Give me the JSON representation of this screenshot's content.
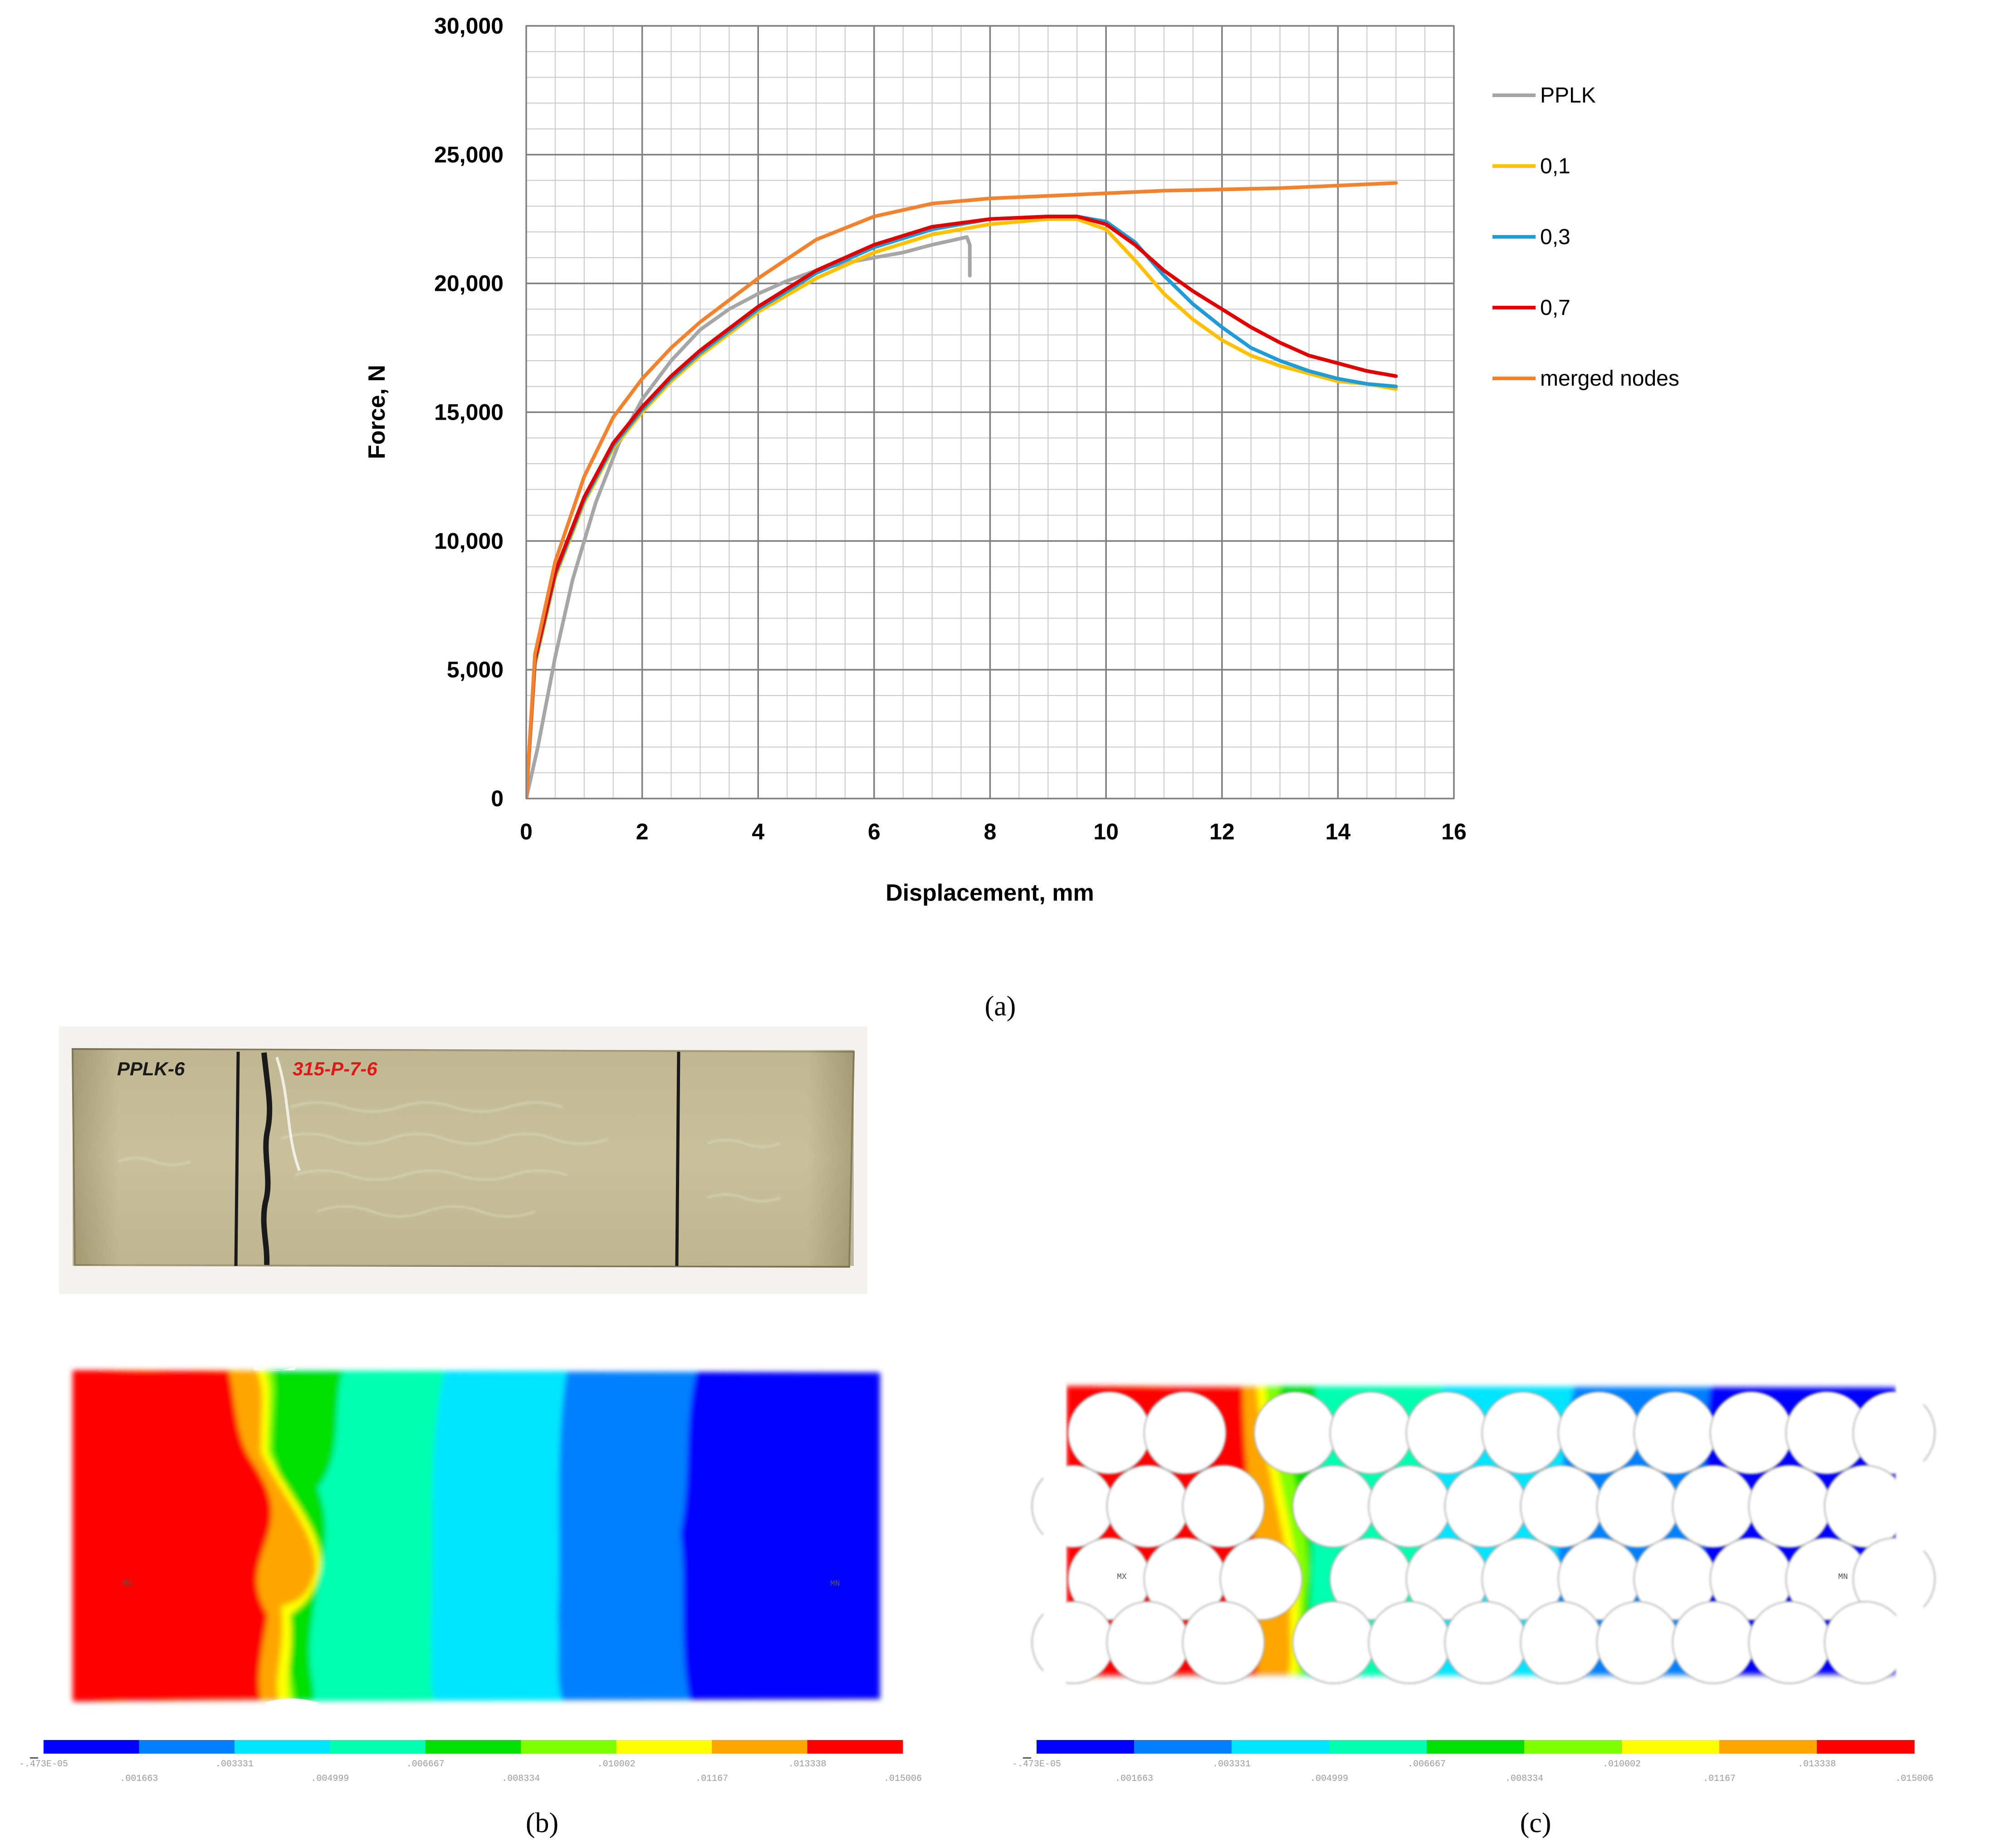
{
  "colors": {
    "PPLK": "#a6a6a6",
    "0,1": "#ffc000",
    "0,3": "#1f9bd7",
    "0,7": "#e00000",
    "merged nodes": "#f2822e",
    "grid_major": "#7f7f7f",
    "grid_minor": "#c8c8c8"
  },
  "chart_data": {
    "type": "line",
    "title": "",
    "xlabel": "Displacement, mm",
    "ylabel": "Force, N",
    "xlim": [
      0,
      16
    ],
    "ylim": [
      0,
      30000
    ],
    "x_ticks": [
      "0",
      "2",
      "4",
      "6",
      "8",
      "10",
      "12",
      "14",
      "16"
    ],
    "y_ticks": [
      "0",
      "5,000",
      "10,000",
      "15,000",
      "20,000",
      "25,000",
      "30,000"
    ],
    "grid": "major and minor",
    "legend_position": "right",
    "series": [
      {
        "name": "PPLK",
        "color_key": "PPLK",
        "x": [
          0,
          0.2,
          0.5,
          0.8,
          1.2,
          1.6,
          2.0,
          2.5,
          3.0,
          3.5,
          4.0,
          4.5,
          5.0,
          5.5,
          6.0,
          6.5,
          7.0,
          7.4,
          7.6,
          7.65,
          7.65
        ],
        "y": [
          0,
          2000,
          5500,
          8500,
          11500,
          13800,
          15500,
          17000,
          18200,
          19000,
          19600,
          20100,
          20500,
          20800,
          21000,
          21200,
          21500,
          21700,
          21800,
          21500,
          20300
        ]
      },
      {
        "name": "0,1",
        "color_key": "0,1",
        "x": [
          0,
          0.15,
          0.5,
          1.0,
          1.5,
          2.0,
          2.5,
          3.0,
          4.0,
          5.0,
          6.0,
          7.0,
          8.0,
          9.0,
          9.5,
          10.0,
          10.5,
          11.0,
          11.5,
          12.0,
          12.5,
          13.0,
          13.5,
          14.0,
          14.5,
          15.0
        ],
        "y": [
          0,
          5200,
          8600,
          11500,
          13600,
          15000,
          16200,
          17200,
          18900,
          20200,
          21200,
          21900,
          22300,
          22500,
          22500,
          22100,
          20900,
          19600,
          18600,
          17800,
          17200,
          16800,
          16500,
          16200,
          16100,
          15900
        ]
      },
      {
        "name": "0,3",
        "color_key": "0,3",
        "x": [
          0,
          0.15,
          0.5,
          1.0,
          1.5,
          2.0,
          2.5,
          3.0,
          4.0,
          5.0,
          6.0,
          7.0,
          8.0,
          9.0,
          9.5,
          10.0,
          10.5,
          11.0,
          11.5,
          12.0,
          12.5,
          13.0,
          13.5,
          14.0,
          14.5,
          15.0
        ],
        "y": [
          0,
          5300,
          8700,
          11600,
          13700,
          15100,
          16300,
          17300,
          19000,
          20400,
          21400,
          22100,
          22500,
          22600,
          22600,
          22400,
          21600,
          20300,
          19200,
          18300,
          17500,
          17000,
          16600,
          16300,
          16100,
          16000
        ]
      },
      {
        "name": "0,7",
        "color_key": "0,7",
        "x": [
          0,
          0.15,
          0.5,
          1.0,
          1.5,
          2.0,
          2.5,
          3.0,
          4.0,
          5.0,
          6.0,
          7.0,
          8.0,
          9.0,
          9.5,
          10.0,
          10.5,
          11.0,
          11.5,
          12.0,
          12.5,
          13.0,
          13.5,
          14.0,
          14.5,
          15.0
        ],
        "y": [
          0,
          5400,
          8800,
          11700,
          13800,
          15200,
          16400,
          17400,
          19100,
          20500,
          21500,
          22200,
          22500,
          22600,
          22600,
          22300,
          21500,
          20500,
          19700,
          19000,
          18300,
          17700,
          17200,
          16900,
          16600,
          16400
        ]
      },
      {
        "name": "merged nodes",
        "color_key": "merged nodes",
        "x": [
          0,
          0.15,
          0.5,
          1.0,
          1.5,
          2.0,
          2.5,
          3.0,
          4.0,
          5.0,
          6.0,
          7.0,
          8.0,
          9.0,
          10.0,
          11.0,
          12.0,
          13.0,
          14.0,
          15.0
        ],
        "y": [
          0,
          5600,
          9200,
          12500,
          14800,
          16300,
          17500,
          18500,
          20200,
          21700,
          22600,
          23100,
          23300,
          23400,
          23500,
          23600,
          23650,
          23700,
          23800,
          23900
        ]
      }
    ]
  },
  "captions": {
    "a": "(a)",
    "b": "(b)",
    "c": "(c)",
    "a_letter": "a",
    "b_letter": "b",
    "c_letter": "c"
  },
  "photo": {
    "label_left": "PPLK-6",
    "label_right": "315-P-7-6"
  },
  "contour_scale": {
    "colors": [
      "#0000ff",
      "#0080ff",
      "#00e5ff",
      "#00ffb0",
      "#00e000",
      "#80ff00",
      "#ffff00",
      "#ffa500",
      "#ff0000"
    ],
    "labels": [
      "-.473E-05",
      ".001663",
      ".003331",
      ".004999",
      ".006667",
      ".008334",
      ".010002",
      ".01167",
      ".013338",
      ".015006"
    ]
  },
  "fem_tags": {
    "b_left": "MX",
    "b_right": "MN",
    "c_left": "MX",
    "c_right": "MN"
  }
}
